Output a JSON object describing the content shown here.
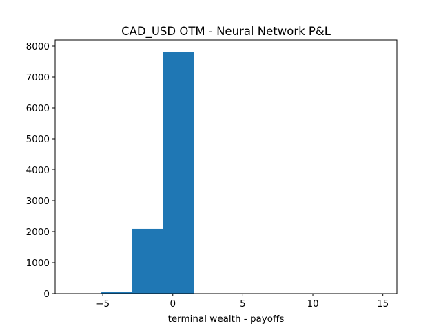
{
  "chart_data": {
    "type": "histogram",
    "title": "CAD_USD OTM - Neural Network P&L",
    "xlabel": "terminal wealth - payoffs",
    "ylabel": "",
    "xlim": [
      -8.4,
      16.0
    ],
    "ylim": [
      0,
      8200
    ],
    "x_ticks": [
      -5,
      0,
      5,
      10,
      15
    ],
    "y_ticks": [
      0,
      1000,
      2000,
      3000,
      4000,
      5000,
      6000,
      7000,
      8000
    ],
    "bin_edges": [
      -7.3,
      -5.1,
      -2.9,
      -0.7,
      1.5,
      3.7,
      5.9,
      8.1,
      10.3,
      12.5,
      14.7
    ],
    "counts": [
      3,
      55,
      2090,
      7820,
      10,
      4,
      2,
      1,
      0,
      1
    ],
    "grid": false,
    "bar_color": "#1f77b4"
  }
}
